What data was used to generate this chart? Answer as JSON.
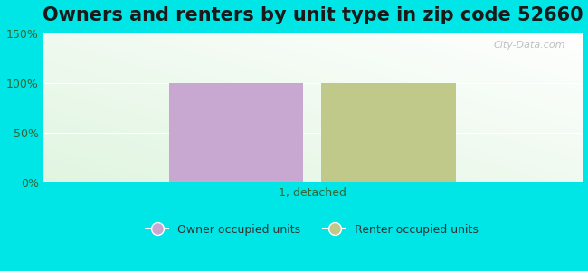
{
  "title": "Owners and renters by unit type in zip code 52660",
  "categories": [
    "1, detached"
  ],
  "owner_values": [
    100
  ],
  "renter_values": [
    100
  ],
  "owner_color": "#c8a8d0",
  "renter_color": "#c0c88a",
  "ylim": [
    0,
    150
  ],
  "yticks": [
    0,
    50,
    100,
    150
  ],
  "ytick_labels": [
    "0%",
    "50%",
    "100%",
    "150%"
  ],
  "owner_label": "Owner occupied units",
  "renter_label": "Renter occupied units",
  "background_outer": "#00e5e5",
  "watermark": "City-Data.com",
  "bar_width": 0.3,
  "title_fontsize": 15
}
